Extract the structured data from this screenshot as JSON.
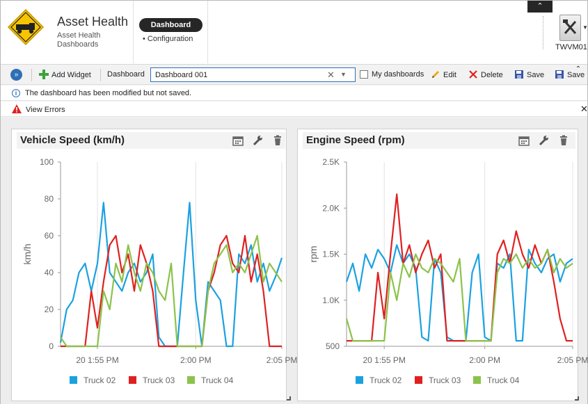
{
  "header": {
    "title": "Asset Health",
    "subtitle": "Asset Health Dashboards",
    "nav": [
      {
        "label": "Dashboard",
        "active": true
      },
      {
        "label": "Configuration",
        "active": false
      }
    ],
    "user": {
      "name": "TWVM01"
    }
  },
  "toolbar": {
    "add_widget": "Add Widget",
    "dashboard_label": "Dashboard",
    "dashboard_value": "Dashboard 001",
    "my_dashboards": "My dashboards",
    "edit": "Edit",
    "delete": "Delete",
    "save": "Save",
    "save_as_partial": "Save"
  },
  "notices": {
    "modified": "The dashboard has been modified but not saved.",
    "errors": "View Errors"
  },
  "colors": {
    "accent": "#2f6fb7",
    "truck02": "#1aa1e0",
    "truck03": "#e02020",
    "truck04": "#8bc34a"
  },
  "widgets": [
    {
      "title": "Vehicle Speed (km/h)"
    },
    {
      "title": "Engine Speed (rpm)"
    }
  ],
  "chart_data": [
    {
      "type": "line",
      "title": "Vehicle Speed (km/h)",
      "ylabel": "km/h",
      "xlabel": "",
      "ylim": [
        0,
        100
      ],
      "yticks": [
        "0",
        "20",
        "40",
        "60",
        "80",
        "100"
      ],
      "xlim": [
        0,
        18
      ],
      "x_tick_values": [
        3,
        11,
        18
      ],
      "x_tick_labels": [
        "20 1:55 PM",
        "2:00 PM",
        "2:05 PM"
      ],
      "grid": "vertical",
      "legend": "bottom",
      "x": [
        0,
        0.5,
        1,
        1.5,
        2,
        2.5,
        3,
        3.5,
        4,
        4.5,
        5,
        5.5,
        6,
        6.5,
        7,
        7.5,
        8,
        8.5,
        9,
        9.5,
        10,
        10.5,
        11,
        11.5,
        12,
        12.5,
        13,
        13.5,
        14,
        14.5,
        15,
        15.5,
        16,
        16.5,
        17,
        17.5,
        18
      ],
      "series": [
        {
          "name": "Truck 02",
          "values": [
            2,
            20,
            25,
            40,
            45,
            30,
            45,
            78,
            40,
            35,
            30,
            40,
            45,
            35,
            40,
            50,
            5,
            0,
            0,
            0,
            40,
            78,
            25,
            0,
            35,
            30,
            25,
            0,
            0,
            50,
            45,
            55,
            35,
            45,
            30,
            38,
            48
          ]
        },
        {
          "name": "Truck 03",
          "values": [
            0,
            0,
            0,
            0,
            0,
            30,
            10,
            35,
            55,
            60,
            40,
            50,
            30,
            55,
            45,
            30,
            0,
            0,
            0,
            0,
            0,
            0,
            0,
            0,
            30,
            40,
            55,
            60,
            45,
            40,
            60,
            35,
            50,
            30,
            0,
            0,
            0
          ]
        },
        {
          "name": "Truck 04",
          "values": [
            5,
            0,
            0,
            0,
            0,
            0,
            0,
            30,
            20,
            45,
            35,
            55,
            40,
            30,
            45,
            40,
            30,
            25,
            45,
            0,
            0,
            0,
            0,
            0,
            30,
            45,
            50,
            55,
            40,
            45,
            40,
            50,
            60,
            35,
            45,
            40,
            35
          ]
        }
      ]
    },
    {
      "type": "line",
      "title": "Engine Speed (rpm)",
      "ylabel": "rpm",
      "xlabel": "",
      "ylim": [
        500,
        2500
      ],
      "yticks": [
        "500",
        "1.0K",
        "1.5K",
        "2.0K",
        "2.5K"
      ],
      "xlim": [
        0,
        18
      ],
      "x_tick_values": [
        3,
        11,
        18
      ],
      "x_tick_labels": [
        "20 1:55 PM",
        "2:00 PM",
        "2:05 PM"
      ],
      "grid": "vertical",
      "legend": "bottom",
      "x": [
        0,
        0.5,
        1,
        1.5,
        2,
        2.5,
        3,
        3.5,
        4,
        4.5,
        5,
        5.5,
        6,
        6.5,
        7,
        7.5,
        8,
        8.5,
        9,
        9.5,
        10,
        10.5,
        11,
        11.5,
        12,
        12.5,
        13,
        13.5,
        14,
        14.5,
        15,
        15.5,
        16,
        16.5,
        17,
        17.5,
        18
      ],
      "series": [
        {
          "name": "Truck 02",
          "values": [
            1200,
            1400,
            1100,
            1500,
            1350,
            1550,
            1450,
            1300,
            1600,
            1400,
            1500,
            1350,
            600,
            560,
            1450,
            1300,
            600,
            560,
            560,
            560,
            1300,
            1500,
            600,
            560,
            1400,
            1350,
            1500,
            560,
            560,
            1550,
            1400,
            1300,
            1450,
            1500,
            1200,
            1400,
            1450
          ]
        },
        {
          "name": "Truck 03",
          "values": [
            560,
            560,
            560,
            560,
            560,
            1300,
            800,
            1500,
            2150,
            1400,
            1600,
            1300,
            1500,
            1650,
            1350,
            1500,
            560,
            560,
            560,
            560,
            560,
            560,
            560,
            560,
            1500,
            1650,
            1400,
            1750,
            1500,
            1350,
            1600,
            1400,
            1550,
            1200,
            800,
            560,
            560
          ]
        },
        {
          "name": "Truck 04",
          "values": [
            800,
            560,
            560,
            560,
            560,
            560,
            560,
            1300,
            1000,
            1400,
            1250,
            1500,
            1350,
            1300,
            1450,
            1400,
            1300,
            1200,
            1450,
            560,
            560,
            560,
            560,
            560,
            1300,
            1450,
            1400,
            1500,
            1350,
            1450,
            1350,
            1400,
            1550,
            1300,
            1450,
            1350,
            1400
          ]
        }
      ]
    }
  ]
}
